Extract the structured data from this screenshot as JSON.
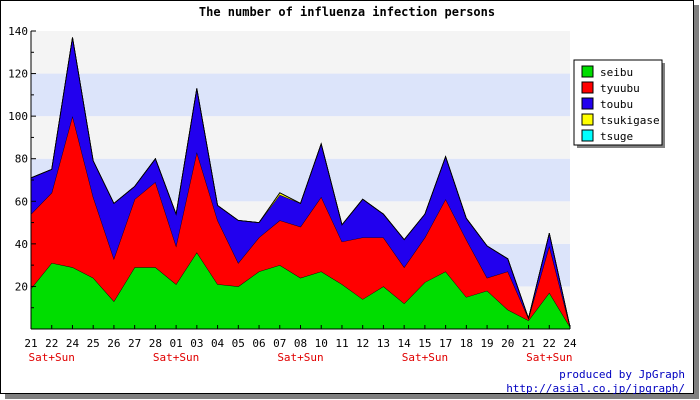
{
  "chart_data": {
    "type": "area",
    "title": "The number of influenza infection persons",
    "stacked": true,
    "grid": true,
    "legend_position": "top-right",
    "ylim": [
      0,
      140
    ],
    "yticks": [
      20,
      40,
      60,
      80,
      100,
      120,
      140
    ],
    "categories": [
      "21",
      "22",
      "24",
      "25",
      "26",
      "27",
      "28",
      "01",
      "03",
      "04",
      "05",
      "06",
      "07",
      "08",
      "10",
      "11",
      "12",
      "13",
      "14",
      "15",
      "17",
      "18",
      "19",
      "20",
      "21",
      "22",
      "24"
    ],
    "weekend_label": "Sat+Sun",
    "weekend_category_indices": [
      1,
      7,
      13,
      19,
      25
    ],
    "series": [
      {
        "name": "seibu",
        "color": "#00dd00",
        "values": [
          19,
          31,
          29,
          24,
          13,
          29,
          29,
          21,
          36,
          21,
          20,
          27,
          30,
          24,
          27,
          21,
          14,
          20,
          12,
          22,
          27,
          15,
          18,
          9,
          4,
          17,
          1
        ]
      },
      {
        "name": "tyuubu",
        "color": "#ff0000",
        "values": [
          35,
          33,
          71,
          38,
          20,
          32,
          40,
          18,
          47,
          30,
          11,
          16,
          21,
          24,
          35,
          20,
          29,
          23,
          17,
          21,
          34,
          27,
          6,
          18,
          1,
          22,
          0
        ]
      },
      {
        "name": "toubu",
        "color": "#2200ee",
        "values": [
          17,
          11,
          37,
          17,
          26,
          6,
          11,
          15,
          30,
          7,
          20,
          7,
          12,
          11,
          25,
          8,
          18,
          11,
          13,
          11,
          20,
          10,
          15,
          6,
          0,
          6,
          0
        ]
      },
      {
        "name": "tsukigase",
        "color": "#ffff00",
        "values": [
          0,
          0,
          0,
          0,
          0,
          0,
          0,
          0,
          0,
          0,
          0,
          0,
          1,
          0,
          0,
          0,
          0,
          0,
          0,
          0,
          0,
          0,
          0,
          0,
          0,
          0,
          0
        ]
      },
      {
        "name": "tsuge",
        "color": "#00ffff",
        "values": [
          0,
          0,
          0,
          0,
          0,
          0,
          0,
          0,
          0,
          0,
          0,
          0,
          0,
          0,
          0,
          0,
          0,
          0,
          0,
          0,
          0,
          0,
          0,
          0,
          0,
          0,
          0
        ]
      }
    ]
  },
  "footer": {
    "credit_line1": "produced by JpGraph",
    "credit_line2": "http://asial.co.jp/jpgraph/"
  }
}
